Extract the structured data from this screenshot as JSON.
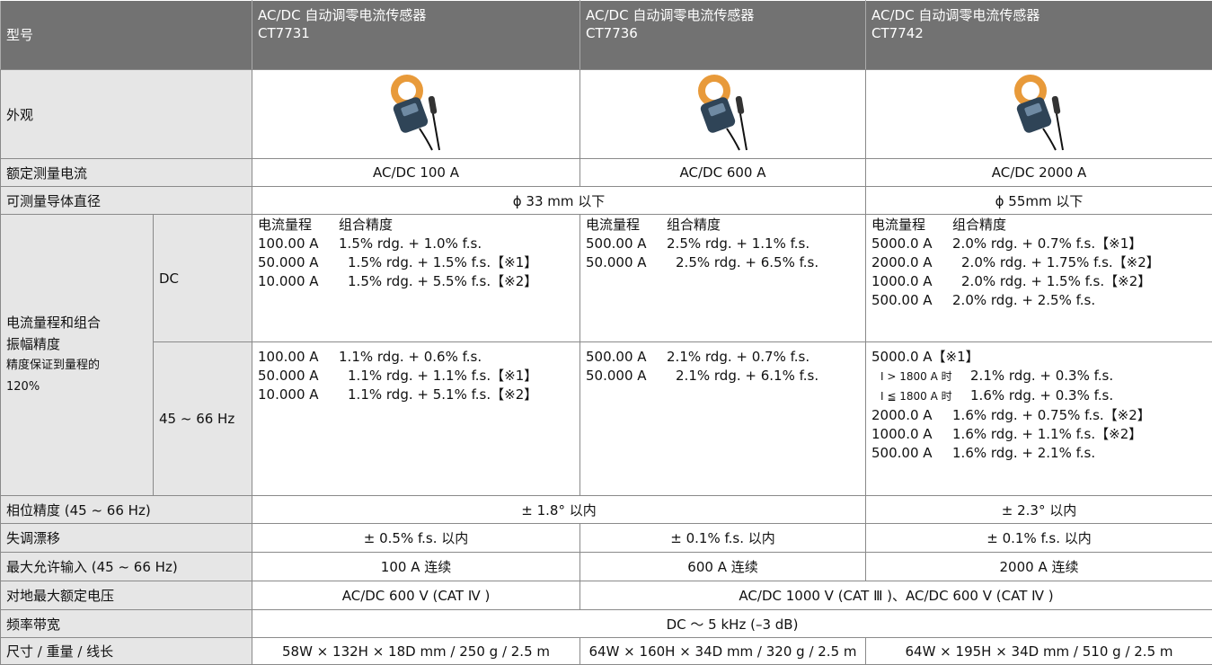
{
  "header": {
    "label": "型号",
    "models": [
      [
        "AC/DC 自动调零电流传感器",
        "CT7731"
      ],
      [
        "AC/DC 自动调零电流传感器",
        "CT7736"
      ],
      [
        "AC/DC 自动调零电流传感器",
        "CT7742"
      ]
    ]
  },
  "appearance": "外观",
  "rated_current": {
    "label": "额定测量电流",
    "values": [
      "AC/DC 100 A",
      "AC/DC 600 A",
      "AC/DC 2000 A"
    ]
  },
  "diameter": {
    "label": "可测量导体直径",
    "values": [
      "ϕ 33 mm 以下",
      "ϕ 55mm 以下"
    ]
  },
  "accuracy": {
    "label": [
      "电流量程和组合",
      "振幅精度"
    ],
    "note": [
      "精度保证到量程的",
      "120%"
    ],
    "dc": {
      "label": "DC",
      "heading": [
        "电流量程",
        "组合精度"
      ],
      "cells": [
        [
          [
            "100.00 A",
            "1.5% rdg. + 1.0% f.s."
          ],
          [
            "50.000 A",
            "1.5% rdg. + 1.5% f.s.【※1】"
          ],
          [
            "10.000 A",
            "1.5% rdg. + 5.5% f.s.【※2】"
          ]
        ],
        [
          [
            "500.00 A",
            "2.5% rdg. + 1.1% f.s."
          ],
          [
            "50.000 A",
            "2.5% rdg. + 6.5% f.s."
          ]
        ],
        [
          [
            "5000.0 A",
            "2.0% rdg. + 0.7% f.s.【※1】"
          ],
          [
            "2000.0 A",
            "2.0% rdg. + 1.75% f.s.【※2】"
          ],
          [
            "1000.0 A",
            "2.0% rdg. + 1.5% f.s.【※2】"
          ],
          [
            "500.00 A",
            "2.0% rdg. + 2.5% f.s."
          ]
        ]
      ]
    },
    "ac": {
      "label": "45 ~ 66 Hz",
      "cells": [
        [
          [
            "100.00 A",
            "1.1% rdg. + 0.6% f.s."
          ],
          [
            "50.000 A",
            "1.1% rdg. + 1.1% f.s.【※1】"
          ],
          [
            "10.000 A",
            "1.1% rdg. + 5.1% f.s.【※2】"
          ]
        ],
        [
          [
            "500.00 A",
            "2.1% rdg. + 0.7% f.s."
          ],
          [
            "50.000 A",
            "2.1% rdg. + 6.1% f.s."
          ]
        ],
        [
          [
            "5000.0 A【※1】"
          ],
          [
            "I > 1800 A 时",
            "2.1% rdg. + 0.3% f.s."
          ],
          [
            "I ≦ 1800 A 时",
            "1.6% rdg. + 0.3% f.s."
          ],
          [
            "2000.0 A",
            "1.6% rdg. + 0.75% f.s.【※2】"
          ],
          [
            "1000.0 A",
            "1.6% rdg. + 1.1% f.s.【※2】"
          ],
          [
            "500.00 A",
            "1.6% rdg. + 2.1% f.s."
          ]
        ]
      ]
    }
  },
  "phase": {
    "label": "相位精度 (45 ~ 66 Hz)",
    "values": [
      "± 1.8° 以内",
      "± 2.3° 以内"
    ]
  },
  "drift": {
    "label": "失调漂移",
    "values": [
      "± 0.5% f.s. 以内",
      "± 0.1% f.s. 以内",
      "± 0.1% f.s. 以内"
    ]
  },
  "max_input": {
    "label": "最大允许输入 (45 ~ 66 Hz)",
    "values": [
      "100 A 连续",
      "600 A 连续",
      "2000 A 连续"
    ]
  },
  "max_voltage": {
    "label": "对地最大额定电压",
    "values": [
      "AC/DC 600 V (CAT Ⅳ )",
      "AC/DC 1000 V (CAT Ⅲ )、AC/DC 600 V (CAT Ⅳ )"
    ]
  },
  "bandwidth": {
    "label": "频率带宽",
    "value": "DC ～ 5 kHz (–3 dB)"
  },
  "size": {
    "label": "尺寸 / 重量 / 线长",
    "values": [
      "58W × 132H × 18D mm / 250 g / 2.5 m",
      "64W × 160H × 34D mm / 320 g / 2.5 m",
      "64W × 195H × 34D mm / 510 g / 2.5 m"
    ]
  }
}
